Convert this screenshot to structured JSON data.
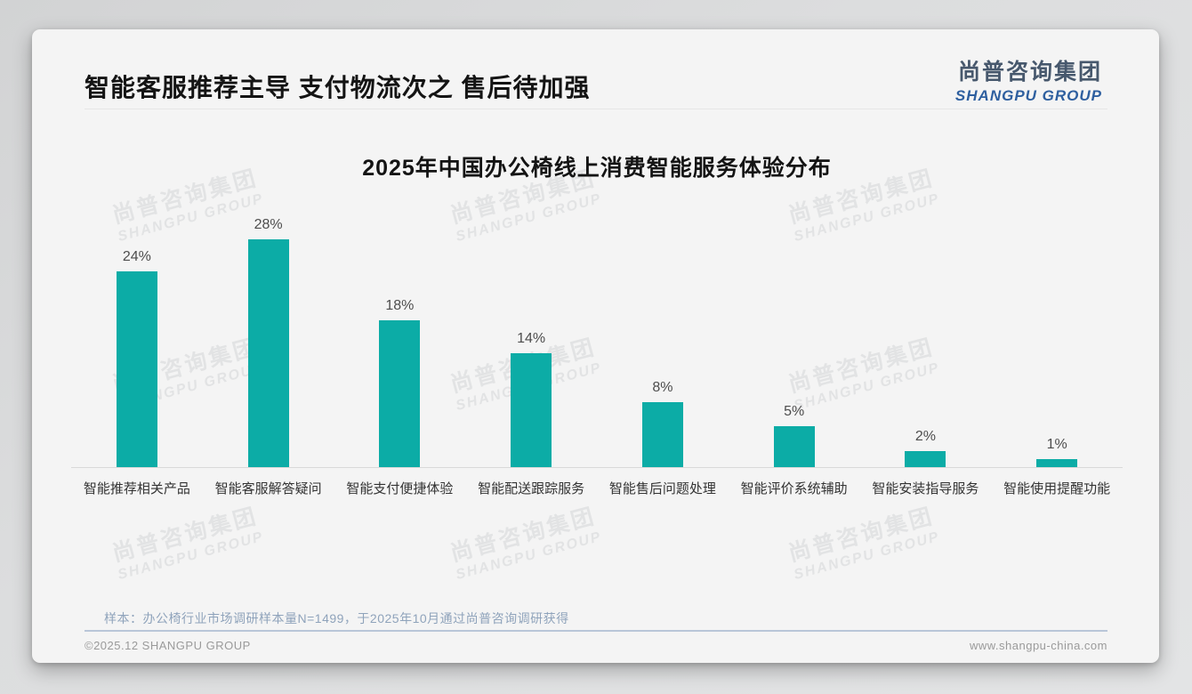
{
  "page": {
    "title": "智能客服推荐主导 支付物流次之 售后待加强",
    "logo": {
      "cn": "尚普咨询集团",
      "en": "SHANGPU GROUP"
    },
    "note": "样本：办公椅行业市场调研样本量N=1499，于2025年10月通过尚普咨询调研获得",
    "footer_left": "©2025.12 SHANGPU GROUP",
    "footer_right": "www.shangpu-china.com",
    "watermark": {
      "line1": "尚普咨询集团",
      "line2": "SHANGPU GROUP"
    }
  },
  "chart_data": {
    "type": "bar",
    "title": "2025年中国办公椅线上消费智能服务体验分布",
    "categories": [
      "智能推荐相关产品",
      "智能客服解答疑问",
      "智能支付便捷体验",
      "智能配送跟踪服务",
      "智能售后问题处理",
      "智能评价系统辅助",
      "智能安装指导服务",
      "智能使用提醒功能"
    ],
    "values": [
      24,
      28,
      18,
      14,
      8,
      5,
      2,
      1
    ],
    "unit": "%",
    "bar_color": "#0caca6",
    "ylim": [
      0,
      30
    ],
    "grid": false,
    "legend": false,
    "data_labels": true,
    "xlabel": "",
    "ylabel": ""
  }
}
